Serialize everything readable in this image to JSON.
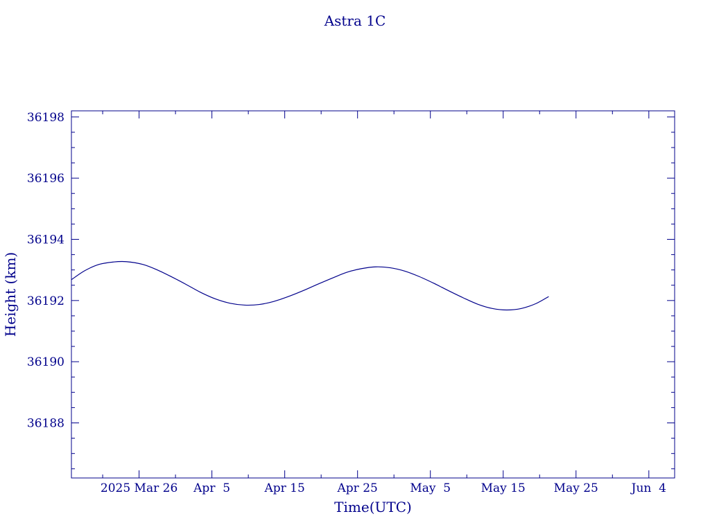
{
  "chart_data": {
    "type": "line",
    "title": "Astra 1C",
    "xlabel": "Time(UTC)",
    "ylabel": "Height (km)",
    "color": "#00008b",
    "background": "#ffffff",
    "xlim": [
      "2025-03-16T17:00",
      "2025-06-07T13:00"
    ],
    "ylim": [
      36186.2,
      36198.2
    ],
    "x_ticks": [
      {
        "date": "2025-03-26",
        "label": "2025 Mar 26"
      },
      {
        "date": "2025-04-05",
        "label": "Apr  5"
      },
      {
        "date": "2025-04-15",
        "label": "Apr 15"
      },
      {
        "date": "2025-04-25",
        "label": "Apr 25"
      },
      {
        "date": "2025-05-05",
        "label": "May  5"
      },
      {
        "date": "2025-05-15",
        "label": "May 15"
      },
      {
        "date": "2025-05-25",
        "label": "May 25"
      },
      {
        "date": "2025-06-04",
        "label": "Jun  4"
      }
    ],
    "x_minor_tick_days": 5,
    "y_ticks": [
      36188,
      36190,
      36192,
      36194,
      36196,
      36198
    ],
    "y_tick_labels": [
      "36188",
      "36190",
      "36192",
      "36194",
      "36196",
      "36198"
    ],
    "y_minor_step": 0.5,
    "grid": false,
    "legend": "none",
    "series": [
      {
        "x": [
          "2025-03-16T17:00",
          "2025-03-18T12:00",
          "2025-03-20T12:00",
          "2025-03-22T12:00",
          "2025-03-24T06:00",
          "2025-03-26T12:00",
          "2025-03-28T12:00",
          "2025-03-30T12:00",
          "2025-04-01T12:00",
          "2025-04-03T12:00",
          "2025-04-05T12:00",
          "2025-04-07T12:00",
          "2025-04-09T12:00",
          "2025-04-11T12:00",
          "2025-04-13T12:00",
          "2025-04-15T12:00",
          "2025-04-17T12:00",
          "2025-04-19T12:00",
          "2025-04-21T12:00",
          "2025-04-23T12:00",
          "2025-04-25T12:00",
          "2025-04-27T12:00",
          "2025-04-29T12:00",
          "2025-05-01T12:00",
          "2025-05-03T12:00",
          "2025-05-05T12:00",
          "2025-05-07T12:00",
          "2025-05-09T12:00",
          "2025-05-11T12:00",
          "2025-05-13T12:00",
          "2025-05-15T12:00",
          "2025-05-17T12:00",
          "2025-05-19T12:00",
          "2025-05-21T06:00"
        ],
        "y": [
          36192.68,
          36192.97,
          36193.18,
          36193.26,
          36193.27,
          36193.18,
          36193.0,
          36192.77,
          36192.52,
          36192.26,
          36192.05,
          36191.91,
          36191.85,
          36191.87,
          36191.97,
          36192.13,
          36192.32,
          36192.53,
          36192.73,
          36192.92,
          36193.04,
          36193.1,
          36193.07,
          36192.96,
          36192.78,
          36192.56,
          36192.32,
          36192.09,
          36191.88,
          36191.74,
          36191.69,
          36191.74,
          36191.9,
          36192.13
        ]
      }
    ]
  }
}
